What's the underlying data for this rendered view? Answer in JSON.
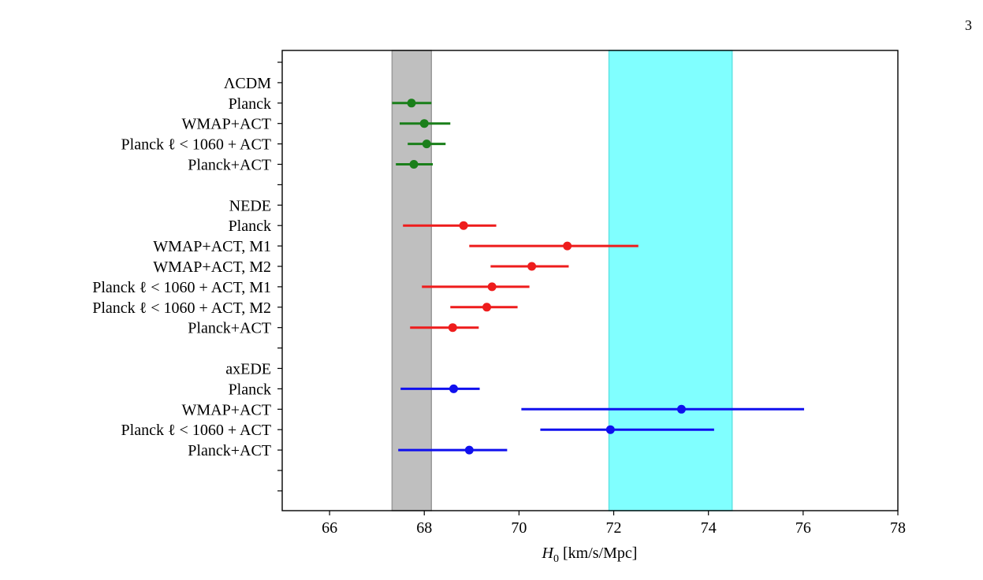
{
  "page_number": "3",
  "chart_data": {
    "type": "forest",
    "xlabel_italic": "H",
    "xlabel_sub": "0",
    "xlabel_rest": " [km/s/Mpc]",
    "xlim": [
      65,
      78
    ],
    "xticks": [
      "66",
      "68",
      "70",
      "72",
      "74",
      "76",
      "78"
    ],
    "bands": [
      {
        "name": "planck-lcdm-band",
        "range": [
          67.32,
          68.15
        ],
        "color": "#bfbfbf",
        "edge": "#9a9a9a"
      },
      {
        "name": "shoes-local-band",
        "range": [
          71.9,
          74.5
        ],
        "color": "#80ffff",
        "edge": "#5fe3e3"
      }
    ],
    "groups": [
      {
        "label": "ΛCDM",
        "color": "#1a7f1a",
        "points": [
          {
            "label": "Planck",
            "value": 67.73,
            "lo": 67.32,
            "hi": 68.15
          },
          {
            "label": "WMAP+ACT",
            "value": 68.0,
            "lo": 67.48,
            "hi": 68.55
          },
          {
            "label": "Planck ℓ < 1060 + ACT",
            "value": 68.05,
            "lo": 67.65,
            "hi": 68.45
          },
          {
            "label": "Planck+ACT",
            "value": 67.78,
            "lo": 67.4,
            "hi": 68.18
          }
        ]
      },
      {
        "label": "NEDE",
        "color": "#ee1c1c",
        "points": [
          {
            "label": "Planck",
            "value": 68.83,
            "lo": 67.55,
            "hi": 69.52
          },
          {
            "label": "WMAP+ACT, M1",
            "value": 71.02,
            "lo": 68.95,
            "hi": 72.52
          },
          {
            "label": "WMAP+ACT, M2",
            "value": 70.27,
            "lo": 69.4,
            "hi": 71.05
          },
          {
            "label": "Planck ℓ < 1060 + ACT, M1",
            "value": 69.43,
            "lo": 67.95,
            "hi": 70.22
          },
          {
            "label": "Planck ℓ < 1060 + ACT, M2",
            "value": 69.32,
            "lo": 68.55,
            "hi": 69.97
          },
          {
            "label": "Planck+ACT",
            "value": 68.6,
            "lo": 67.7,
            "hi": 69.15
          }
        ]
      },
      {
        "label": "axEDE",
        "color": "#1010ee",
        "points": [
          {
            "label": "Planck",
            "value": 68.62,
            "lo": 67.5,
            "hi": 69.17
          },
          {
            "label": "WMAP+ACT",
            "value": 73.43,
            "lo": 70.05,
            "hi": 76.02
          },
          {
            "label": "Planck ℓ < 1060 + ACT",
            "value": 71.93,
            "lo": 70.45,
            "hi": 74.12
          },
          {
            "label": "Planck+ACT",
            "value": 68.95,
            "lo": 67.45,
            "hi": 69.75
          }
        ]
      }
    ]
  }
}
